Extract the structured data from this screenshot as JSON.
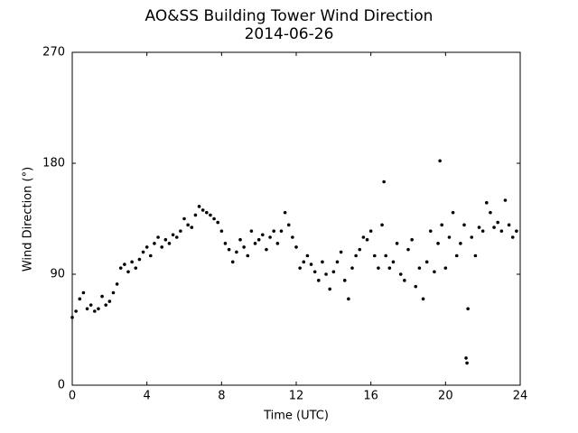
{
  "chart_data": {
    "type": "scatter",
    "title": "AO&SS Building Tower Wind Direction",
    "subtitle": "2014-06-26",
    "x_label": "Time (UTC)",
    "y_label": "Wind Direction (°)",
    "xlim": [
      0,
      24
    ],
    "xticks": [
      0,
      4,
      8,
      12,
      16,
      20,
      24
    ],
    "ylim": [
      0,
      270
    ],
    "yticks": [
      0,
      90,
      180,
      270
    ],
    "color": "#000000",
    "x": [
      0,
      0.2,
      0.4,
      0.6,
      0.8,
      1.0,
      1.2,
      1.4,
      1.6,
      1.8,
      2.0,
      2.2,
      2.4,
      2.6,
      2.8,
      3.0,
      3.2,
      3.4,
      3.6,
      3.8,
      4.0,
      4.2,
      4.4,
      4.6,
      4.8,
      5.0,
      5.2,
      5.4,
      5.6,
      5.8,
      6.0,
      6.2,
      6.4,
      6.6,
      6.8,
      7.0,
      7.2,
      7.4,
      7.6,
      7.8,
      8.0,
      8.2,
      8.4,
      8.6,
      8.8,
      9.0,
      9.2,
      9.4,
      9.6,
      9.8,
      10.0,
      10.2,
      10.4,
      10.6,
      10.8,
      11.0,
      11.2,
      11.4,
      11.6,
      11.8,
      12.0,
      12.2,
      12.4,
      12.6,
      12.8,
      13.0,
      13.2,
      13.4,
      13.6,
      13.8,
      14.0,
      14.2,
      14.4,
      14.6,
      14.8,
      15.0,
      15.2,
      15.4,
      15.6,
      15.8,
      16.0,
      16.2,
      16.4,
      16.6,
      16.8,
      17.0,
      17.2,
      17.4,
      17.6,
      17.8,
      18.0,
      18.2,
      18.4,
      18.6,
      18.8,
      19.0,
      19.2,
      19.4,
      19.6,
      19.8,
      20.0,
      20.2,
      20.4,
      20.6,
      20.8,
      21.0,
      21.2,
      21.4,
      21.6,
      21.8,
      22.0,
      22.2,
      22.4,
      22.6,
      22.8,
      23.0,
      23.2,
      23.4,
      23.6,
      23.8,
      19.7,
      21.1,
      21.15,
      16.7
    ],
    "values": [
      55,
      60,
      70,
      75,
      62,
      65,
      60,
      62,
      72,
      65,
      68,
      75,
      82,
      95,
      98,
      92,
      100,
      95,
      102,
      108,
      112,
      105,
      115,
      120,
      112,
      118,
      115,
      122,
      120,
      125,
      135,
      130,
      128,
      138,
      145,
      142,
      140,
      138,
      135,
      132,
      125,
      115,
      110,
      100,
      108,
      118,
      112,
      105,
      125,
      115,
      118,
      122,
      110,
      120,
      125,
      115,
      125,
      140,
      130,
      120,
      112,
      95,
      100,
      105,
      98,
      92,
      85,
      100,
      90,
      78,
      92,
      100,
      108,
      85,
      70,
      95,
      105,
      110,
      120,
      118,
      125,
      105,
      95,
      130,
      105,
      95,
      100,
      115,
      90,
      85,
      110,
      118,
      80,
      95,
      70,
      100,
      125,
      92,
      115,
      130,
      95,
      120,
      140,
      105,
      115,
      130,
      62,
      120,
      105,
      128,
      125,
      148,
      140,
      128,
      132,
      125,
      150,
      130,
      120,
      125,
      182,
      22,
      18,
      165
    ]
  }
}
